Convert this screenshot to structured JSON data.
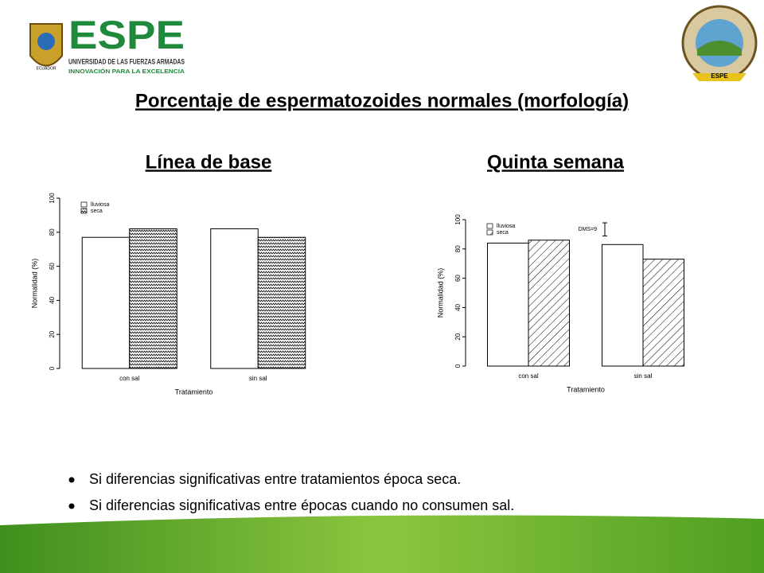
{
  "header": {
    "logo": "ESPE",
    "university": "UNIVERSIDAD DE LAS FUERZAS ARMADAS",
    "motto": "INNOVACIÓN PARA LA EXCELENCIA",
    "country": "ECUADOR",
    "emblem": "ESPE"
  },
  "slide": {
    "title": "Porcentaje de espermatozoides normales (morfología)",
    "bullets": [
      "Si diferencias significativas entre tratamientos época seca.",
      "Si diferencias significativas entre épocas cuando no consumen sal."
    ]
  },
  "chart_data": [
    {
      "type": "bar",
      "title": "Línea de base",
      "categories": [
        "con sal",
        "sin sal"
      ],
      "series": [
        {
          "name": "lluviosa",
          "color": "#ffffff",
          "pattern": "none",
          "values": [
            77,
            82
          ]
        },
        {
          "name": "seca",
          "color": "#ffffff",
          "pattern": "zigzag",
          "values": [
            82,
            77
          ]
        }
      ],
      "ylim": [
        0,
        100
      ],
      "yticks": [
        0,
        20,
        40,
        60,
        80,
        100
      ],
      "xlabel": "Tratamiento",
      "ylabel": "Normalidad (%)",
      "legend": "top-left",
      "grid": false
    },
    {
      "type": "bar",
      "title": "Quinta semana",
      "categories": [
        "con sal",
        "sin sal"
      ],
      "series": [
        {
          "name": "lluviosa",
          "color": "#ffffff",
          "pattern": "none",
          "values": [
            84,
            83
          ]
        },
        {
          "name": "seca",
          "color": "#ffffff",
          "pattern": "diagonal",
          "values": [
            86,
            73
          ]
        }
      ],
      "ylim": [
        0,
        100
      ],
      "yticks": [
        0,
        20,
        40,
        60,
        80,
        100
      ],
      "xlabel": "Tratamiento",
      "ylabel": "Normalidad (%)",
      "legend": "top-left",
      "grid": false,
      "dms": {
        "label": "DMS=9",
        "value": 9
      }
    }
  ]
}
